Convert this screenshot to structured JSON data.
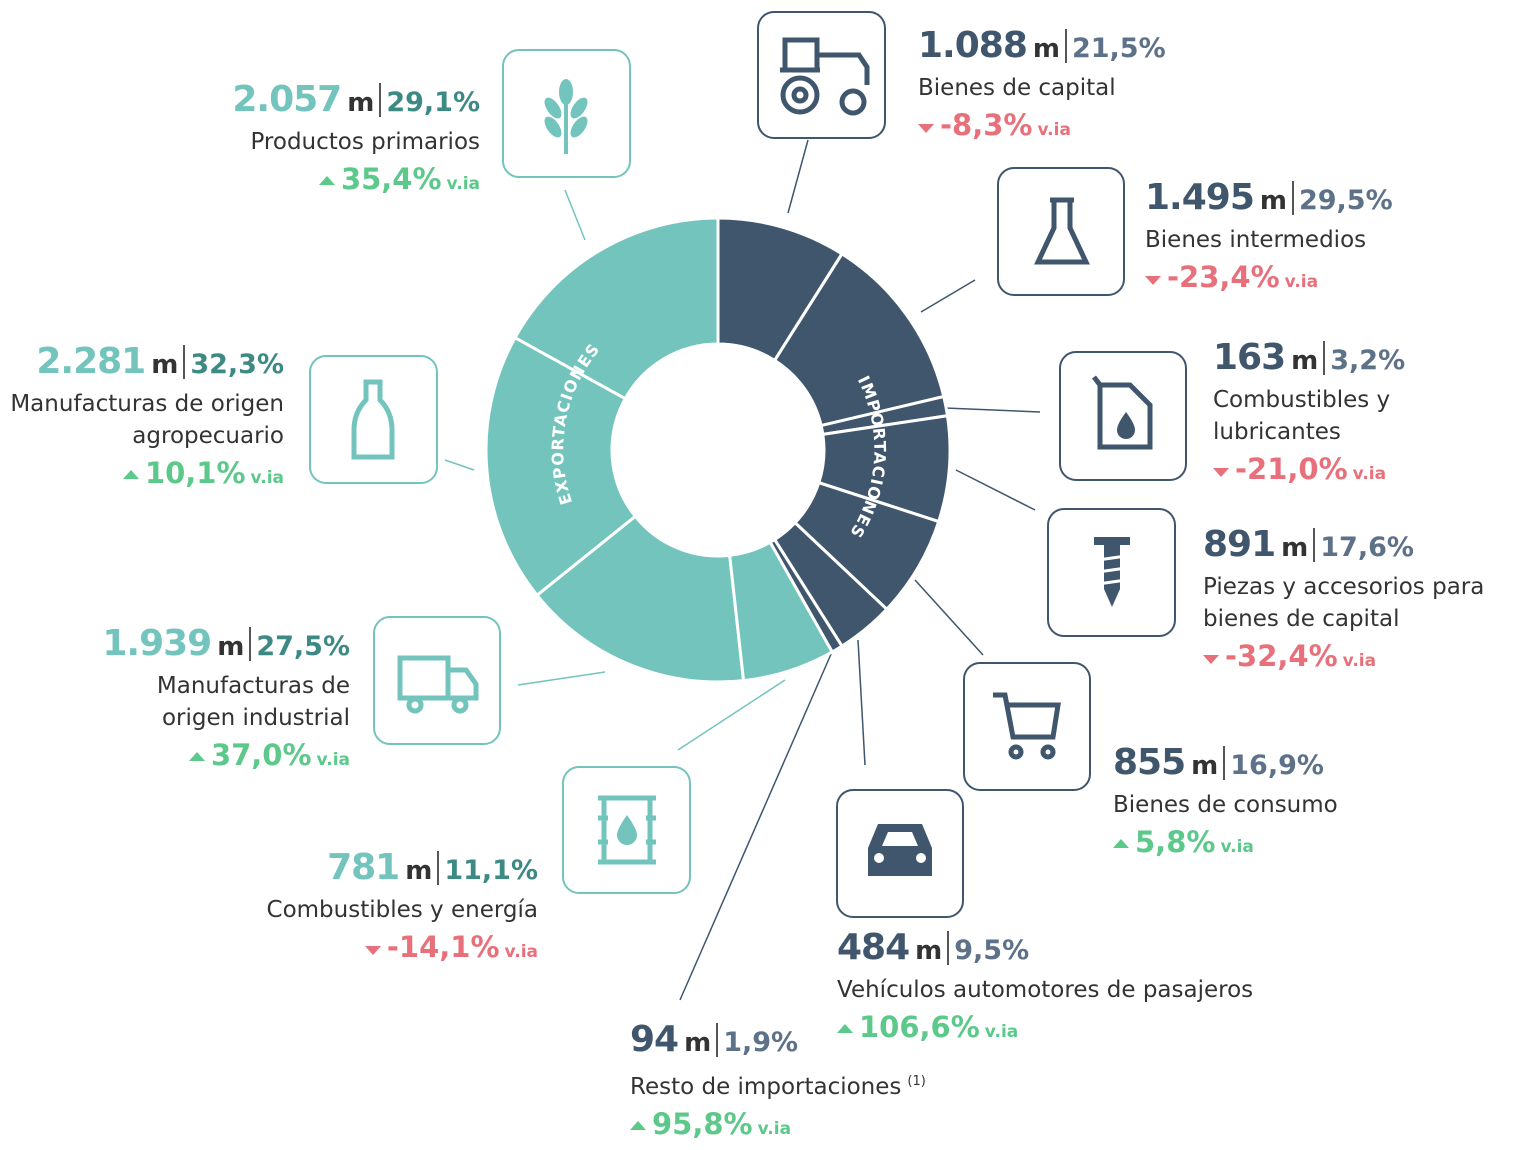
{
  "chart_data": {
    "type": "donut",
    "unit": "m",
    "change_unit": "v.ia",
    "series": [
      {
        "name": "EXPORTACIONES",
        "color": "#72c4bd",
        "categories": [
          "Productos primarios",
          "Manufacturas de origen agropecuario",
          "Manufacturas de origen industrial",
          "Combustibles y energía"
        ],
        "values": [
          2057,
          2281,
          1939,
          781
        ],
        "value_labels": [
          "2.057",
          "2.281",
          "1.939",
          "781"
        ],
        "shares": [
          29.1,
          32.3,
          27.5,
          11.1
        ],
        "share_labels": [
          "29,1%",
          "32,3%",
          "27,5%",
          "11,1%"
        ],
        "changes": [
          35.4,
          10.1,
          37.0,
          -14.1
        ],
        "change_labels": [
          "35,4%",
          "10,1%",
          "37,0%",
          "-14,1%"
        ]
      },
      {
        "name": "IMPORTACIONES",
        "color": "#3f566d",
        "categories": [
          "Bienes de capital",
          "Bienes intermedios",
          "Combustibles y lubricantes",
          "Piezas y accesorios para bienes de capital",
          "Bienes de consumo",
          "Vehículos automotores de pasajeros",
          "Resto de importaciones"
        ],
        "footnotes": [
          null,
          null,
          null,
          null,
          null,
          null,
          "(1)"
        ],
        "values": [
          1088,
          1495,
          163,
          891,
          855,
          484,
          94
        ],
        "value_labels": [
          "1.088",
          "1.495",
          "163",
          "891",
          "855",
          "484",
          "94"
        ],
        "shares": [
          21.5,
          29.5,
          3.2,
          17.6,
          16.9,
          9.5,
          1.9
        ],
        "share_labels": [
          "21,5%",
          "29,5%",
          "3,2%",
          "17,6%",
          "16,9%",
          "9,5%",
          "1,9%"
        ],
        "changes": [
          -8.3,
          -23.4,
          -21.0,
          -32.4,
          5.8,
          106.6,
          95.8
        ],
        "change_labels": [
          "-8,3%",
          "-23,4%",
          "-21,0%",
          "-32,4%",
          "5,8%",
          "106,6%",
          "95,8%"
        ]
      }
    ]
  }
}
